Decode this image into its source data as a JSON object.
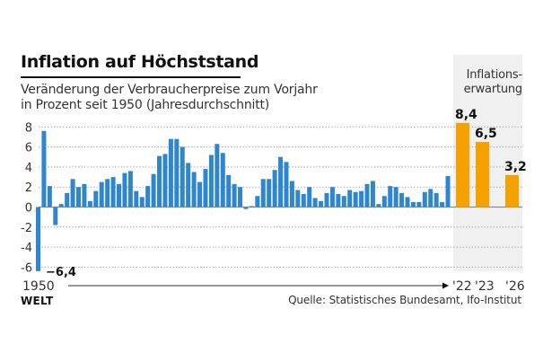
{
  "header": {
    "title": "Inflation auf Höchststand",
    "subtitle_line1": "Veränderung der Verbraucherpreise zum Vorjahr",
    "subtitle_line2": "in Prozent seit 1950 (Jahresdurchschnitt)"
  },
  "forecast": {
    "label_line1": "Inflations-",
    "label_line2": "erwartung"
  },
  "footer": {
    "logo": "WELT",
    "source": "Quelle: Statistisches Bundesamt, Ifo-Institut"
  },
  "colors": {
    "history_bar": "#2e86cf",
    "forecast_bar": "#f5a100",
    "panel": "#f0f0f0",
    "grid": "#9a9a9a"
  },
  "chart_data": {
    "type": "bar",
    "title": "Inflation auf Höchststand",
    "subtitle": "Veränderung der Verbraucherpreise zum Vorjahr in Prozent seit 1950 (Jahresdurchschnitt)",
    "xlabel": "",
    "ylabel": "",
    "ylim": [
      -6.4,
      8.4
    ],
    "yticks": [
      8,
      6,
      4,
      2,
      0,
      -2,
      -4,
      -6
    ],
    "ytick_labels": [
      "8",
      "6",
      "4",
      "2",
      "0",
      "-2",
      "-4",
      "-6"
    ],
    "grid": true,
    "x_tick_labels": [
      {
        "year": 1950,
        "label": "1950"
      },
      {
        "year": 2022,
        "label": "'22"
      },
      {
        "year": 2023,
        "label": "'23"
      },
      {
        "year": 2026,
        "label": "'26"
      }
    ],
    "series": [
      {
        "name": "Verbraucherpreise",
        "years": [
          1950,
          1951,
          1952,
          1953,
          1954,
          1955,
          1956,
          1957,
          1958,
          1959,
          1960,
          1961,
          1962,
          1963,
          1964,
          1965,
          1966,
          1967,
          1968,
          1969,
          1970,
          1971,
          1972,
          1973,
          1974,
          1975,
          1976,
          1977,
          1978,
          1979,
          1980,
          1981,
          1982,
          1983,
          1984,
          1985,
          1986,
          1987,
          1988,
          1989,
          1990,
          1991,
          1992,
          1993,
          1994,
          1995,
          1996,
          1997,
          1998,
          1999,
          2000,
          2001,
          2002,
          2003,
          2004,
          2005,
          2006,
          2007,
          2008,
          2009,
          2010,
          2011,
          2012,
          2013,
          2014,
          2015,
          2016,
          2017,
          2018,
          2019,
          2020,
          2021
        ],
        "values": [
          -6.4,
          7.6,
          2.1,
          -1.8,
          0.3,
          1.4,
          2.8,
          2.0,
          2.3,
          0.6,
          1.6,
          2.5,
          2.8,
          3.0,
          2.3,
          3.4,
          3.6,
          1.6,
          1.0,
          2.1,
          3.3,
          5.1,
          5.3,
          6.8,
          6.8,
          6.0,
          4.4,
          3.5,
          2.5,
          3.8,
          5.2,
          6.3,
          5.4,
          3.2,
          2.3,
          2.0,
          -0.2,
          0.1,
          1.1,
          2.8,
          2.8,
          3.7,
          5.0,
          4.5,
          2.6,
          1.7,
          1.3,
          2.0,
          0.9,
          0.6,
          1.4,
          2.0,
          1.3,
          1.1,
          1.7,
          1.5,
          1.6,
          2.3,
          2.6,
          0.3,
          1.1,
          2.1,
          2.0,
          1.4,
          1.0,
          0.5,
          0.5,
          1.5,
          1.8,
          1.4,
          0.5,
          3.1
        ]
      },
      {
        "name": "Inflationserwartung",
        "years": [
          2022,
          2023,
          2026
        ],
        "values": [
          8.4,
          6.5,
          3.2
        ],
        "labels": [
          "8,4",
          "6,5",
          "3,2"
        ]
      }
    ],
    "annotations": [
      {
        "year": 1950,
        "value": -6.4,
        "text": "−6,4"
      }
    ]
  }
}
